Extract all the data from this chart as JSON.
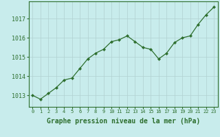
{
  "xlabel": "Graphe pression niveau de la mer (hPa)",
  "x_values": [
    0,
    1,
    2,
    3,
    4,
    5,
    6,
    7,
    8,
    9,
    10,
    11,
    12,
    13,
    14,
    15,
    16,
    17,
    18,
    19,
    20,
    21,
    22,
    23
  ],
  "y_values": [
    1013.0,
    1012.8,
    1013.1,
    1013.4,
    1013.8,
    1013.9,
    1014.4,
    1014.9,
    1015.2,
    1015.4,
    1015.8,
    1015.9,
    1016.1,
    1015.8,
    1015.5,
    1015.4,
    1014.9,
    1015.2,
    1015.75,
    1016.0,
    1016.1,
    1016.7,
    1017.2,
    1017.6
  ],
  "line_color": "#2d6e2d",
  "marker": "D",
  "marker_size": 2.2,
  "line_width": 0.9,
  "bg_color": "#c8ecec",
  "grid_color": "#b0d0d0",
  "label_color": "#2d6e2d",
  "ylim_min": 1012.4,
  "ylim_max": 1017.9,
  "yticks": [
    1013,
    1014,
    1015,
    1016,
    1017
  ],
  "xtick_labels": [
    "0",
    "1",
    "2",
    "3",
    "4",
    "5",
    "6",
    "7",
    "8",
    "9",
    "10",
    "11",
    "12",
    "13",
    "14",
    "15",
    "16",
    "17",
    "18",
    "19",
    "20",
    "21",
    "22",
    "23"
  ],
  "xlabel_fontsize": 7.0,
  "ytick_fontsize": 6.0,
  "xtick_fontsize": 5.0
}
